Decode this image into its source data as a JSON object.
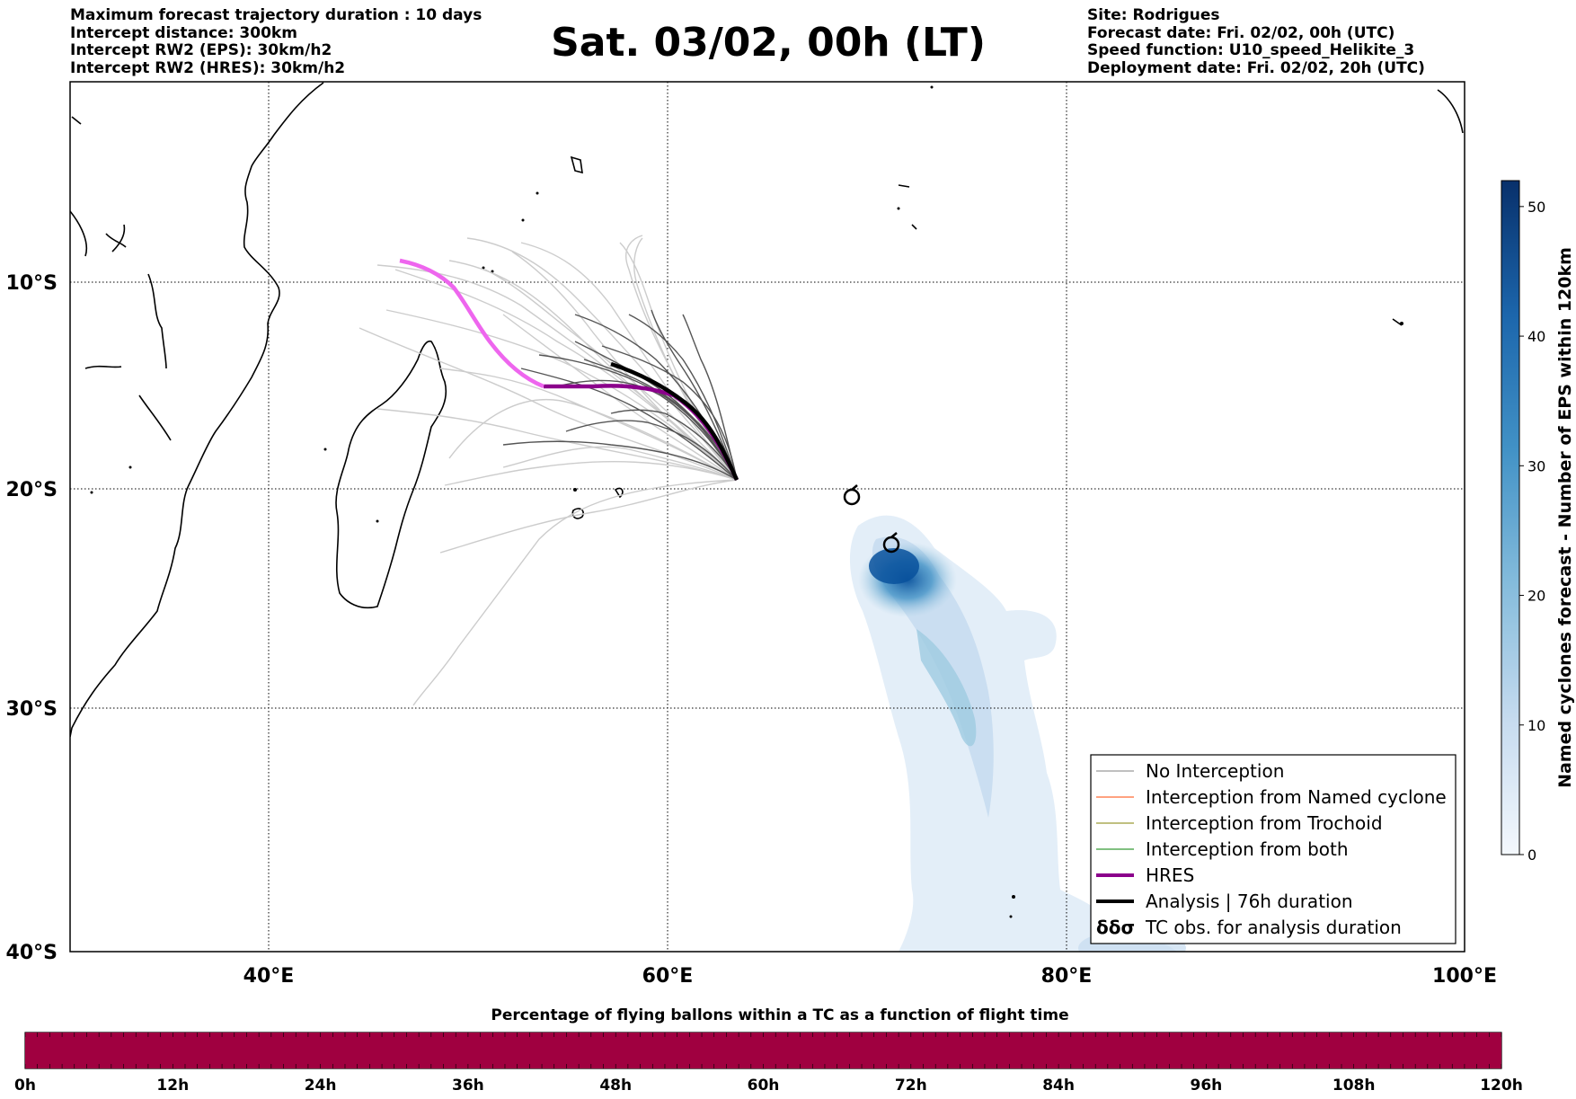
{
  "header_left": [
    "Maximum forecast trajectory duration : 10 days",
    "Intercept distance: 300km",
    "Intercept RW2 (EPS):  30km/h2",
    "Intercept RW2 (HRES): 30km/h2"
  ],
  "header_right": [
    "Site: Rodrigues",
    "Forecast date: Fri. 02/02, 00h (UTC)",
    "Speed function: U10_speed_Helikite_3",
    "Deployment date: Fri. 02/02, 20h (UTC)"
  ],
  "title": "Sat. 03/02, 00h (LT)",
  "colors": {
    "hres": "#8b008b",
    "hres_light": "#ee66ee",
    "analysis": "#000000",
    "no_interception": "#808080",
    "named_cyclone": "#ff4500",
    "trochoid": "#808000",
    "both": "#008000",
    "density_dark": "#08306b",
    "density_light": "#deebf7",
    "percentage_bar": "#a00040"
  },
  "map": {
    "lat_labels": [
      "10°S",
      "20°S",
      "30°S",
      "40°S"
    ],
    "lon_labels": [
      "40°E",
      "60°E",
      "80°E",
      "100°E"
    ]
  },
  "legend": [
    {
      "label": "No Interception",
      "color": "#808080",
      "width": 1,
      "icon": "line"
    },
    {
      "label": "Interception from Named cyclone",
      "color": "#ff4500",
      "width": 1,
      "icon": "line"
    },
    {
      "label": "Interception from Trochoid",
      "color": "#808000",
      "width": 1,
      "icon": "line"
    },
    {
      "label": "Interception from both",
      "color": "#008000",
      "width": 1,
      "icon": "line"
    },
    {
      "label": "HRES",
      "color": "#8b008b",
      "width": 4,
      "icon": "line"
    },
    {
      "label": "Analysis | 76h duration",
      "color": "#000000",
      "width": 4,
      "icon": "line"
    },
    {
      "label": "TC obs. for analysis duration",
      "color": "#000000",
      "width": 0,
      "icon": "cyclone-symbols-icon"
    }
  ],
  "legend_symbol_text": "δδσ",
  "colorbar": {
    "label": "Named cyclones forecast - Number of EPS within 120km",
    "ticks": [
      "0",
      "10",
      "20",
      "30",
      "40",
      "50"
    ]
  },
  "bottom_bar": {
    "title": "Percentage of flying ballons within a TC as a function of flight time",
    "ticks": [
      "0h",
      "12h",
      "24h",
      "36h",
      "48h",
      "60h",
      "72h",
      "84h",
      "96h",
      "108h",
      "120h"
    ],
    "fill_fraction": 1.0
  }
}
